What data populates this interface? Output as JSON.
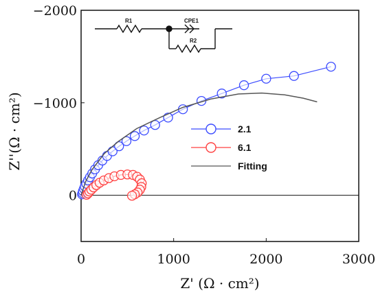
{
  "chart_data": {
    "type": "scatter",
    "title": "",
    "xlabel": "Z' (Ω · cm²)",
    "ylabel": "Z''(Ω · cm²)",
    "xlim": [
      0,
      3000
    ],
    "ylim": [
      500,
      -2000
    ],
    "x_ticks": [
      {
        "value": 0,
        "label": "0"
      },
      {
        "value": 1000,
        "label": "1000"
      },
      {
        "value": 2000,
        "label": "2000"
      },
      {
        "value": 3000,
        "label": "3000"
      }
    ],
    "y_ticks": [
      {
        "value": -2000,
        "label": "−2000"
      },
      {
        "value": -1000,
        "label": "−1000"
      },
      {
        "value": 0,
        "label": "0"
      }
    ],
    "grid": false,
    "legend_position": "right",
    "series": [
      {
        "name": "2.1",
        "color": "#3b4bff",
        "marker": "open-circle",
        "line": true,
        "points": [
          [
            10,
            -10
          ],
          [
            15,
            -25
          ],
          [
            20,
            -45
          ],
          [
            30,
            -70
          ],
          [
            40,
            -95
          ],
          [
            55,
            -125
          ],
          [
            75,
            -160
          ],
          [
            95,
            -195
          ],
          [
            120,
            -235
          ],
          [
            150,
            -280
          ],
          [
            185,
            -325
          ],
          [
            230,
            -375
          ],
          [
            280,
            -425
          ],
          [
            340,
            -475
          ],
          [
            410,
            -530
          ],
          [
            490,
            -585
          ],
          [
            580,
            -640
          ],
          [
            680,
            -700
          ],
          [
            800,
            -760
          ],
          [
            940,
            -840
          ],
          [
            1100,
            -930
          ],
          [
            1300,
            -1020
          ],
          [
            1520,
            -1100
          ],
          [
            1760,
            -1190
          ],
          [
            2000,
            -1260
          ],
          [
            2300,
            -1290
          ],
          [
            2700,
            -1390
          ]
        ]
      },
      {
        "name": "6.1",
        "color": "#ff4040",
        "marker": "open-circle",
        "line": true,
        "points": [
          [
            60,
            -5
          ],
          [
            75,
            -20
          ],
          [
            90,
            -40
          ],
          [
            110,
            -60
          ],
          [
            135,
            -85
          ],
          [
            165,
            -110
          ],
          [
            200,
            -135
          ],
          [
            245,
            -160
          ],
          [
            300,
            -185
          ],
          [
            360,
            -205
          ],
          [
            430,
            -220
          ],
          [
            500,
            -225
          ],
          [
            560,
            -220
          ],
          [
            605,
            -200
          ],
          [
            635,
            -170
          ],
          [
            655,
            -130
          ],
          [
            650,
            -90
          ],
          [
            635,
            -60
          ],
          [
            610,
            -30
          ],
          [
            580,
            -10
          ],
          [
            550,
            5
          ]
        ]
      },
      {
        "name": "Fitting",
        "color": "#555555",
        "marker": "none",
        "line": true,
        "points": [
          [
            0,
            0
          ],
          [
            50,
            -150
          ],
          [
            120,
            -280
          ],
          [
            250,
            -450
          ],
          [
            400,
            -580
          ],
          [
            600,
            -720
          ],
          [
            850,
            -840
          ],
          [
            1100,
            -950
          ],
          [
            1400,
            -1040
          ],
          [
            1700,
            -1095
          ],
          [
            1950,
            -1105
          ],
          [
            2200,
            -1085
          ],
          [
            2400,
            -1050
          ],
          [
            2550,
            -1010
          ]
        ]
      }
    ]
  },
  "circuit": {
    "r1_label": "R1",
    "cpe_label": "CPE1",
    "r2_label": "R2"
  }
}
